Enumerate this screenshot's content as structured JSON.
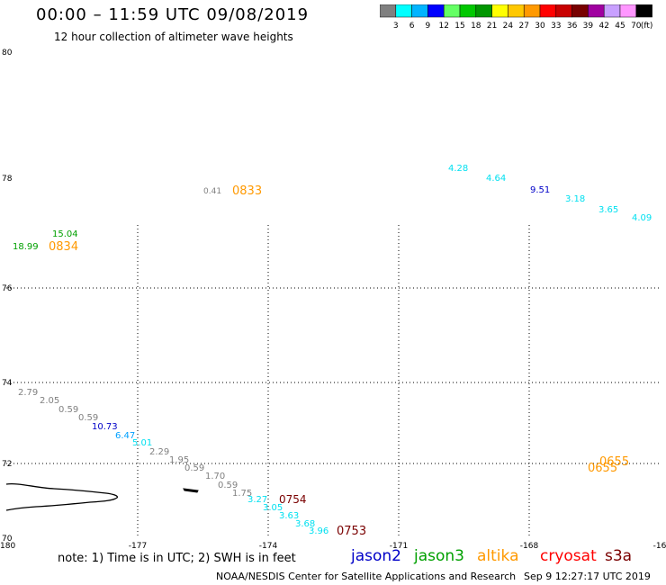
{
  "title": "00:00 – 11:59 UTC 09/08/2019",
  "subtitle": "12 hour collection of altimeter wave heights",
  "colorbar": {
    "colors": [
      "#808080",
      "#00ffff",
      "#00b4ff",
      "#0000ff",
      "#64ff64",
      "#00c800",
      "#009600",
      "#ffff00",
      "#ffc800",
      "#ff9900",
      "#ff0000",
      "#c80000",
      "#780000",
      "#a000a0",
      "#c8a0ff",
      "#ff96ff",
      "#000000"
    ],
    "labels": [
      "3",
      "6",
      "9",
      "12",
      "15",
      "18",
      "21",
      "24",
      "27",
      "30",
      "33",
      "36",
      "39",
      "42",
      "45",
      "70",
      "(ft)"
    ]
  },
  "axes": {
    "x_ticks": [
      "-180",
      "-177",
      "-174",
      "-171",
      "-168",
      "-16"
    ],
    "y_ticks": [
      "80",
      "78",
      "76",
      "74",
      "72",
      "70"
    ]
  },
  "labels": [
    {
      "text": "4.28",
      "color": "#00e0f0"
    },
    {
      "text": "4.64",
      "color": "#00e0f0"
    },
    {
      "text": "9.51",
      "color": "#0000c8"
    },
    {
      "text": "3.18",
      "color": "#00e0f0"
    },
    {
      "text": "3.65",
      "color": "#00e0f0"
    },
    {
      "text": "4.09",
      "color": "#00e0f0"
    },
    {
      "text": "0.41",
      "color": "#808080"
    },
    {
      "text": "0833",
      "color": "#ff9900"
    },
    {
      "text": "15.04",
      "color": "#00a000"
    },
    {
      "text": "18.99",
      "color": "#00a000"
    },
    {
      "text": "0834",
      "color": "#ff9900"
    },
    {
      "text": "2.79",
      "color": "#808080"
    },
    {
      "text": "2.05",
      "color": "#808080"
    },
    {
      "text": "0.59",
      "color": "#808080"
    },
    {
      "text": "0.59",
      "color": "#808080"
    },
    {
      "text": "10.73",
      "color": "#0000c8"
    },
    {
      "text": "6.47",
      "color": "#00a0ff"
    },
    {
      "text": "5.01",
      "color": "#00e0f0"
    },
    {
      "text": "2.29",
      "color": "#808080"
    },
    {
      "text": "1.95",
      "color": "#808080"
    },
    {
      "text": "0.59",
      "color": "#808080"
    },
    {
      "text": "1.70",
      "color": "#808080"
    },
    {
      "text": "0.59",
      "color": "#808080"
    },
    {
      "text": "1.75",
      "color": "#808080"
    },
    {
      "text": "3.27",
      "color": "#00e0f0"
    },
    {
      "text": "0754",
      "color": "#7a0000"
    },
    {
      "text": "3.05",
      "color": "#00e0f0"
    },
    {
      "text": "3.63",
      "color": "#00e0f0"
    },
    {
      "text": "3.68",
      "color": "#00e0f0"
    },
    {
      "text": "3.96",
      "color": "#00e0f0"
    },
    {
      "text": "0753",
      "color": "#7a0000"
    },
    {
      "text": "0655",
      "color": "#ff9900"
    },
    {
      "text": "0655",
      "color": "#ff9900"
    }
  ],
  "note": {
    "text": "note: 1) Time is in UTC; 2) SWH is in feet",
    "jason2": "jason2",
    "jason3": "jason3",
    "altika": "altika",
    "cryosat": "cryosat",
    "s3a": "s3a"
  },
  "footer": {
    "left": "NOAA/NESDIS Center for Satellite Applications and Research",
    "right": "Sep  9 12:27:17 UTC 2019"
  }
}
